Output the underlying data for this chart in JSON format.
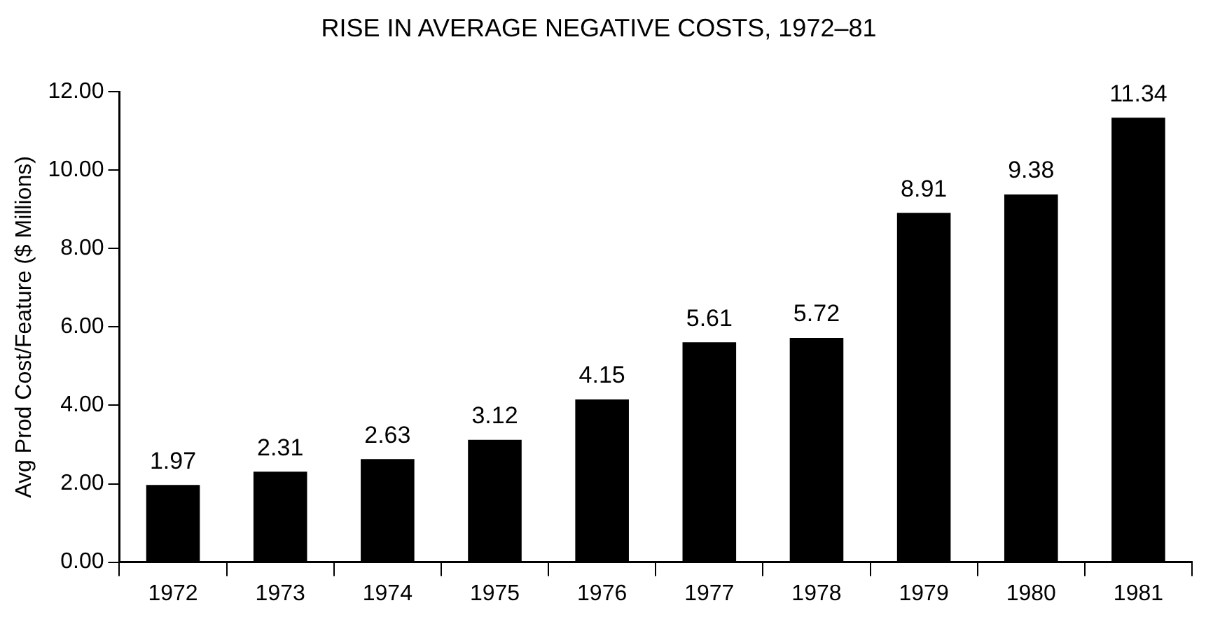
{
  "chart_data": {
    "type": "bar",
    "title": "RISE IN AVERAGE NEGATIVE COSTS, 1972–81",
    "ylabel": "Avg Prod Cost/Feature ($ Millions)",
    "categories": [
      "1972",
      "1973",
      "1974",
      "1975",
      "1976",
      "1977",
      "1978",
      "1979",
      "1980",
      "1981"
    ],
    "values": [
      1.97,
      2.31,
      2.63,
      3.12,
      4.15,
      5.61,
      5.72,
      8.91,
      9.38,
      11.34
    ],
    "color": "#000000",
    "ylim": [
      0,
      12
    ],
    "yticks": [
      {
        "value": 0,
        "label": "0.00"
      },
      {
        "value": 2,
        "label": "2.00"
      },
      {
        "value": 4,
        "label": "4.00"
      },
      {
        "value": 6,
        "label": "6.00"
      },
      {
        "value": 8,
        "label": "8.00"
      },
      {
        "value": 10,
        "label": "10.00"
      },
      {
        "value": 12,
        "label": "12.00"
      }
    ],
    "data_labels": true
  }
}
